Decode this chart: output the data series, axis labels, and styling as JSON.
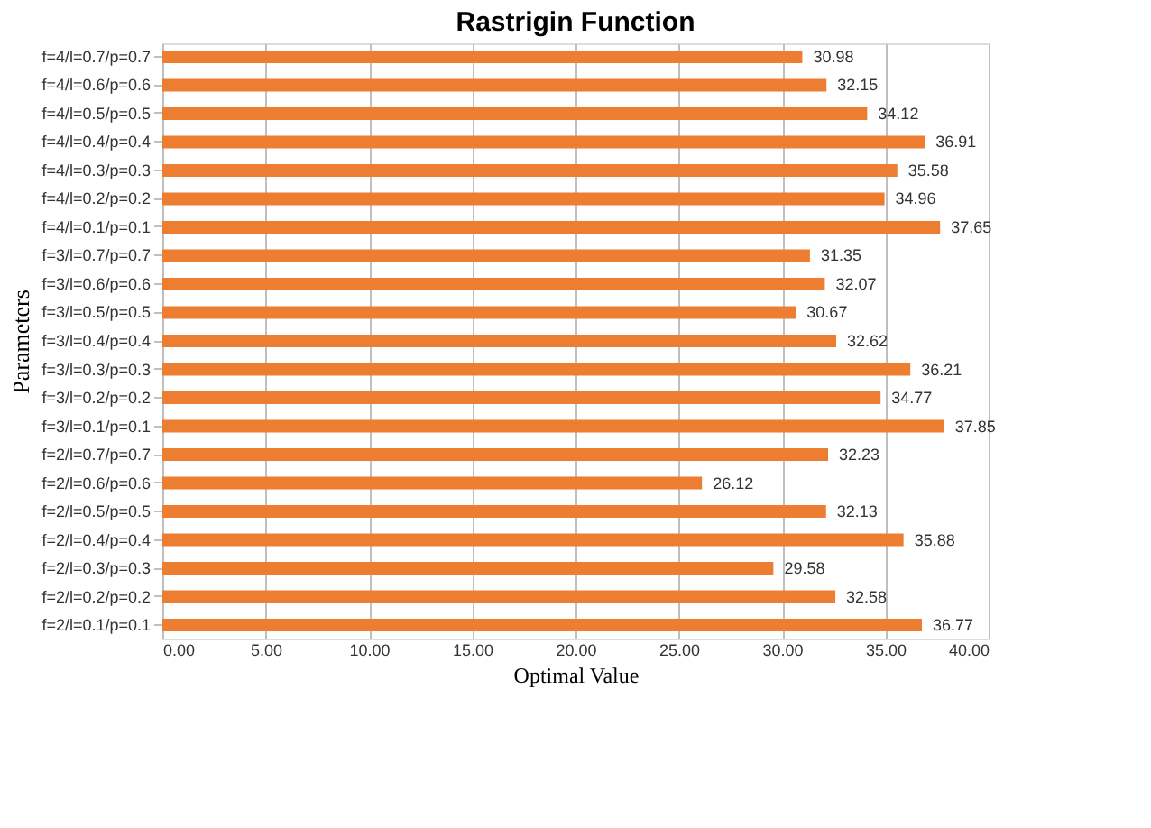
{
  "chart_data": {
    "type": "bar",
    "orientation": "horizontal",
    "title": "Rastrigin Function",
    "xlabel": "Optimal Value",
    "ylabel": "Parameters",
    "categories": [
      "f=4/l=0.7/p=0.7",
      "f=4/l=0.6/p=0.6",
      "f=4/l=0.5/p=0.5",
      "f=4/l=0.4/p=0.4",
      "f=4/l=0.3/p=0.3",
      "f=4/l=0.2/p=0.2",
      "f=4/l=0.1/p=0.1",
      "f=3/l=0.7/p=0.7",
      "f=3/l=0.6/p=0.6",
      "f=3/l=0.5/p=0.5",
      "f=3/l=0.4/p=0.4",
      "f=3/l=0.3/p=0.3",
      "f=3/l=0.2/p=0.2",
      "f=3/l=0.1/p=0.1",
      "f=2/l=0.7/p=0.7",
      "f=2/l=0.6/p=0.6",
      "f=2/l=0.5/p=0.5",
      "f=2/l=0.4/p=0.4",
      "f=2/l=0.3/p=0.3",
      "f=2/l=0.2/p=0.2",
      "f=2/l=0.1/p=0.1"
    ],
    "values": [
      30.98,
      32.15,
      34.12,
      36.91,
      35.58,
      34.96,
      37.65,
      31.35,
      32.07,
      30.67,
      32.62,
      36.21,
      34.77,
      37.85,
      32.23,
      26.12,
      32.13,
      35.88,
      29.58,
      32.58,
      36.77
    ],
    "color": "#ed7d31",
    "data_labels": true,
    "grid": "x",
    "xlim": [
      0,
      40
    ],
    "xticks": [
      {
        "value": 0,
        "label": "0.00"
      },
      {
        "value": 5,
        "label": "5.00"
      },
      {
        "value": 10,
        "label": "10.00"
      },
      {
        "value": 15,
        "label": "15.00"
      },
      {
        "value": 20,
        "label": "20.00"
      },
      {
        "value": 25,
        "label": "25.00"
      },
      {
        "value": 30,
        "label": "30.00"
      },
      {
        "value": 35,
        "label": "35.00"
      },
      {
        "value": 40,
        "label": "40.00"
      }
    ]
  }
}
